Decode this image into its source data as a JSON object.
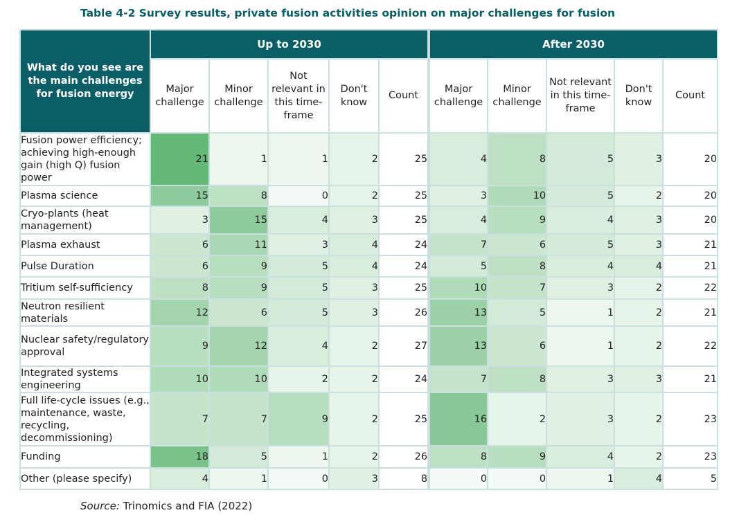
{
  "caption": "Table 4-2 Survey results, private fusion activities opinion on major challenges for fusion",
  "corner_header": "What do you see are the main challenges for fusion energy",
  "groups": [
    "Up to 2030",
    "After 2030"
  ],
  "columns": [
    "Major challenge",
    "Minor challenge",
    "Not relevant in this time-frame",
    "Don't know",
    "Count"
  ],
  "rows": [
    {
      "label": "Fusion power efficiency; achieving high-enough gain (high Q) fusion power",
      "up": [
        21,
        1,
        1,
        2,
        25
      ],
      "after": [
        4,
        8,
        5,
        3,
        20
      ]
    },
    {
      "label": "Plasma science",
      "up": [
        15,
        8,
        0,
        2,
        25
      ],
      "after": [
        3,
        10,
        5,
        2,
        20
      ]
    },
    {
      "label": "Cryo-plants (heat management)",
      "up": [
        3,
        15,
        4,
        3,
        25
      ],
      "after": [
        4,
        9,
        4,
        3,
        20
      ]
    },
    {
      "label": "Plasma exhaust",
      "up": [
        6,
        11,
        3,
        4,
        24
      ],
      "after": [
        7,
        6,
        5,
        3,
        21
      ]
    },
    {
      "label": "Pulse Duration",
      "up": [
        6,
        9,
        5,
        4,
        24
      ],
      "after": [
        5,
        8,
        4,
        4,
        21
      ]
    },
    {
      "label": "Tritium self-sufficiency",
      "up": [
        8,
        9,
        5,
        3,
        25
      ],
      "after": [
        10,
        7,
        3,
        2,
        22
      ]
    },
    {
      "label": "Neutron resilient materials",
      "up": [
        12,
        6,
        5,
        3,
        26
      ],
      "after": [
        13,
        5,
        1,
        2,
        21
      ]
    },
    {
      "label": "Nuclear safety/regulatory approval",
      "up": [
        9,
        12,
        4,
        2,
        27
      ],
      "after": [
        13,
        6,
        1,
        2,
        22
      ]
    },
    {
      "label": "Integrated systems engineering",
      "up": [
        10,
        10,
        2,
        2,
        24
      ],
      "after": [
        7,
        8,
        3,
        3,
        21
      ]
    },
    {
      "label": "Full life-cycle issues (e.g., maintenance, waste, recycling, decommissioning)",
      "up": [
        7,
        7,
        9,
        2,
        25
      ],
      "after": [
        16,
        2,
        3,
        2,
        23
      ]
    },
    {
      "label": "Funding",
      "up": [
        18,
        5,
        1,
        2,
        26
      ],
      "after": [
        8,
        9,
        4,
        2,
        23
      ]
    },
    {
      "label": "Other (please specify)",
      "up": [
        4,
        1,
        0,
        3,
        8
      ],
      "after": [
        0,
        0,
        1,
        4,
        5
      ]
    }
  ],
  "source_prefix": "Source:",
  "source_text": " Trinomics and FIA (2022)",
  "colors": {
    "header_bg": "#0b5e66",
    "caption": "#0b5e66",
    "border": "#c9dfe0"
  }
}
